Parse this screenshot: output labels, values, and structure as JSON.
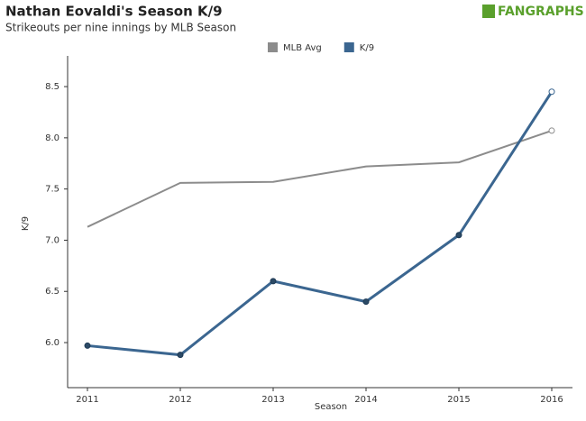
{
  "chart_data": {
    "type": "line",
    "title": "Nathan Eovaldi's Season K/9",
    "subtitle": "Strikeouts per nine innings by MLB Season",
    "logo": "FANGRAPHS",
    "x_label": "Season",
    "y_label": "K/9",
    "categories": [
      "2011",
      "2012",
      "2013",
      "2014",
      "2015",
      "2016"
    ],
    "series": [
      {
        "name": "MLB Avg",
        "color": "#8c8c8c",
        "values": [
          7.13,
          7.56,
          7.57,
          7.72,
          7.76,
          8.07
        ]
      },
      {
        "name": "K/9",
        "color": "#3b6690",
        "values": [
          5.97,
          5.88,
          6.6,
          6.4,
          7.05,
          8.45
        ]
      }
    ],
    "ylim": [
      5.56,
      8.8
    ],
    "yticks": [
      {
        "value": 6,
        "label": "6.0"
      },
      6.5,
      {
        "value": 7,
        "label": "7.0"
      },
      7.5,
      {
        "value": 8,
        "label": "8.0"
      },
      8.5
    ],
    "grid": false
  }
}
